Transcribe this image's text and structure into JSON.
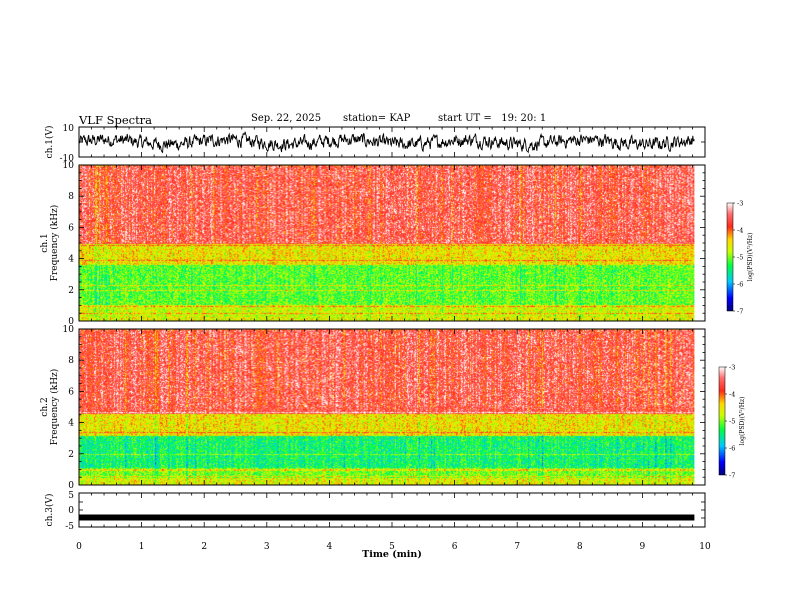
{
  "header": {
    "title": "VLF Spectra",
    "date": "Sep. 22, 2025",
    "station": "station= KAP",
    "start": "start UT =   19: 20: 1"
  },
  "chart_data": [
    {
      "id": "ch1-waveform",
      "type": "line",
      "ylabel": "ch.1(V)",
      "ylim": [
        -10,
        10
      ],
      "yticks": [
        "10",
        "-10"
      ],
      "xlim": [
        0,
        10
      ],
      "trace_end_min": 9.83,
      "trace_description_values": {
        "typical_range_v": [
          -6,
          6
        ]
      }
    },
    {
      "id": "ch1-spectrogram",
      "type": "heatmap",
      "ylabel_line1": "ch.1",
      "ylabel_line2": "Frequency (kHz)",
      "ylim": [
        0,
        10
      ],
      "yticks": [
        "0",
        "2",
        "4",
        "6",
        "8",
        "10"
      ],
      "xlim": [
        0,
        10
      ],
      "data_end_min": 9.83,
      "bands_khz": [
        {
          "from": 0.0,
          "to": 0.3,
          "level": -4.6
        },
        {
          "from": 0.3,
          "to": 1.0,
          "level": -4.7
        },
        {
          "from": 1.0,
          "to": 3.6,
          "level": -5.1
        },
        {
          "from": 3.6,
          "to": 5.0,
          "level": -4.5
        },
        {
          "from": 5.0,
          "to": 10.0,
          "level": -3.6
        }
      ],
      "lines_khz": [
        0.5,
        1.0,
        2.0,
        2.3,
        3.9,
        4.85
      ],
      "colorbar": {
        "label": "log(PSD)(V²/Hz)",
        "range": [
          -7,
          -3
        ],
        "ticks": [
          "-3",
          "-4",
          "-5",
          "-6",
          "-7"
        ]
      }
    },
    {
      "id": "ch2-spectrogram",
      "type": "heatmap",
      "ylabel_line1": "ch.2",
      "ylabel_line2": "Frequency (kHz)",
      "ylim": [
        0,
        10
      ],
      "yticks": [
        "0",
        "2",
        "4",
        "6",
        "8",
        "10"
      ],
      "xlim": [
        0,
        10
      ],
      "data_end_min": 9.83,
      "bands_khz": [
        {
          "from": 0.0,
          "to": 0.5,
          "level": -4.6
        },
        {
          "from": 0.5,
          "to": 1.1,
          "level": -5.0
        },
        {
          "from": 1.1,
          "to": 3.2,
          "level": -5.4
        },
        {
          "from": 3.2,
          "to": 4.6,
          "level": -4.5
        },
        {
          "from": 4.6,
          "to": 10.0,
          "level": -3.6
        }
      ],
      "lines_khz": [
        0.6,
        1.0,
        2.0,
        3.4,
        4.7
      ],
      "colorbar": {
        "label": "log(PSD)(V²/Hz)",
        "range": [
          -7,
          -3
        ],
        "ticks": [
          "-3",
          "-4",
          "-5",
          "-6",
          "-7"
        ]
      }
    },
    {
      "id": "ch3-waveform",
      "type": "line",
      "ylabel": "ch.3(V)",
      "ylim": [
        -5,
        5
      ],
      "yticks": [
        "5",
        "0",
        "-5"
      ],
      "xlim": [
        0,
        10
      ],
      "xlabel": "Time (min)",
      "xticks": [
        "0",
        "1",
        "2",
        "3",
        "4",
        "5",
        "6",
        "7",
        "8",
        "9",
        "10"
      ],
      "trace_end_min": 9.83,
      "trace_description_values": {
        "level_v": -2.2
      }
    }
  ],
  "colors": {
    "axis": "#000000",
    "trace": "#000000"
  }
}
